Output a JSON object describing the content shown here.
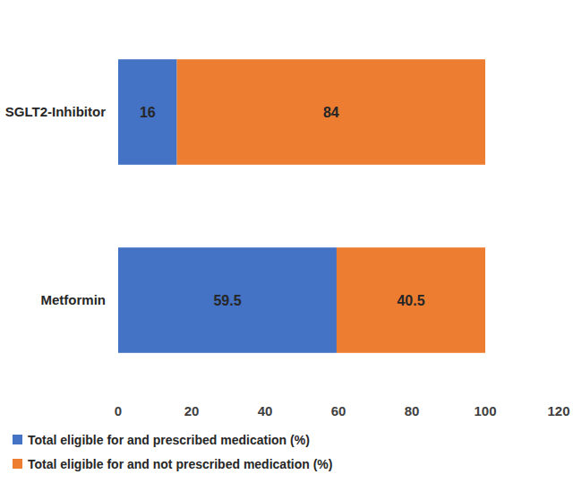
{
  "chart_data": {
    "type": "bar",
    "orientation": "horizontal",
    "stacked": true,
    "categories": [
      "SGLT2-Inhibitor",
      "Metformin"
    ],
    "series": [
      {
        "name": "Total eligible for and prescribed medication (%)",
        "color": "#4472c4",
        "values": [
          16,
          59.5
        ]
      },
      {
        "name": "Total eligible for and not prescribed medication (%)",
        "color": "#ed7d31",
        "values": [
          84,
          40.5
        ]
      }
    ],
    "xlim": [
      0,
      120
    ],
    "xticks": [
      0,
      20,
      40,
      60,
      80,
      100,
      120
    ],
    "grid": false,
    "legend": "bottom",
    "data_labels": true
  }
}
